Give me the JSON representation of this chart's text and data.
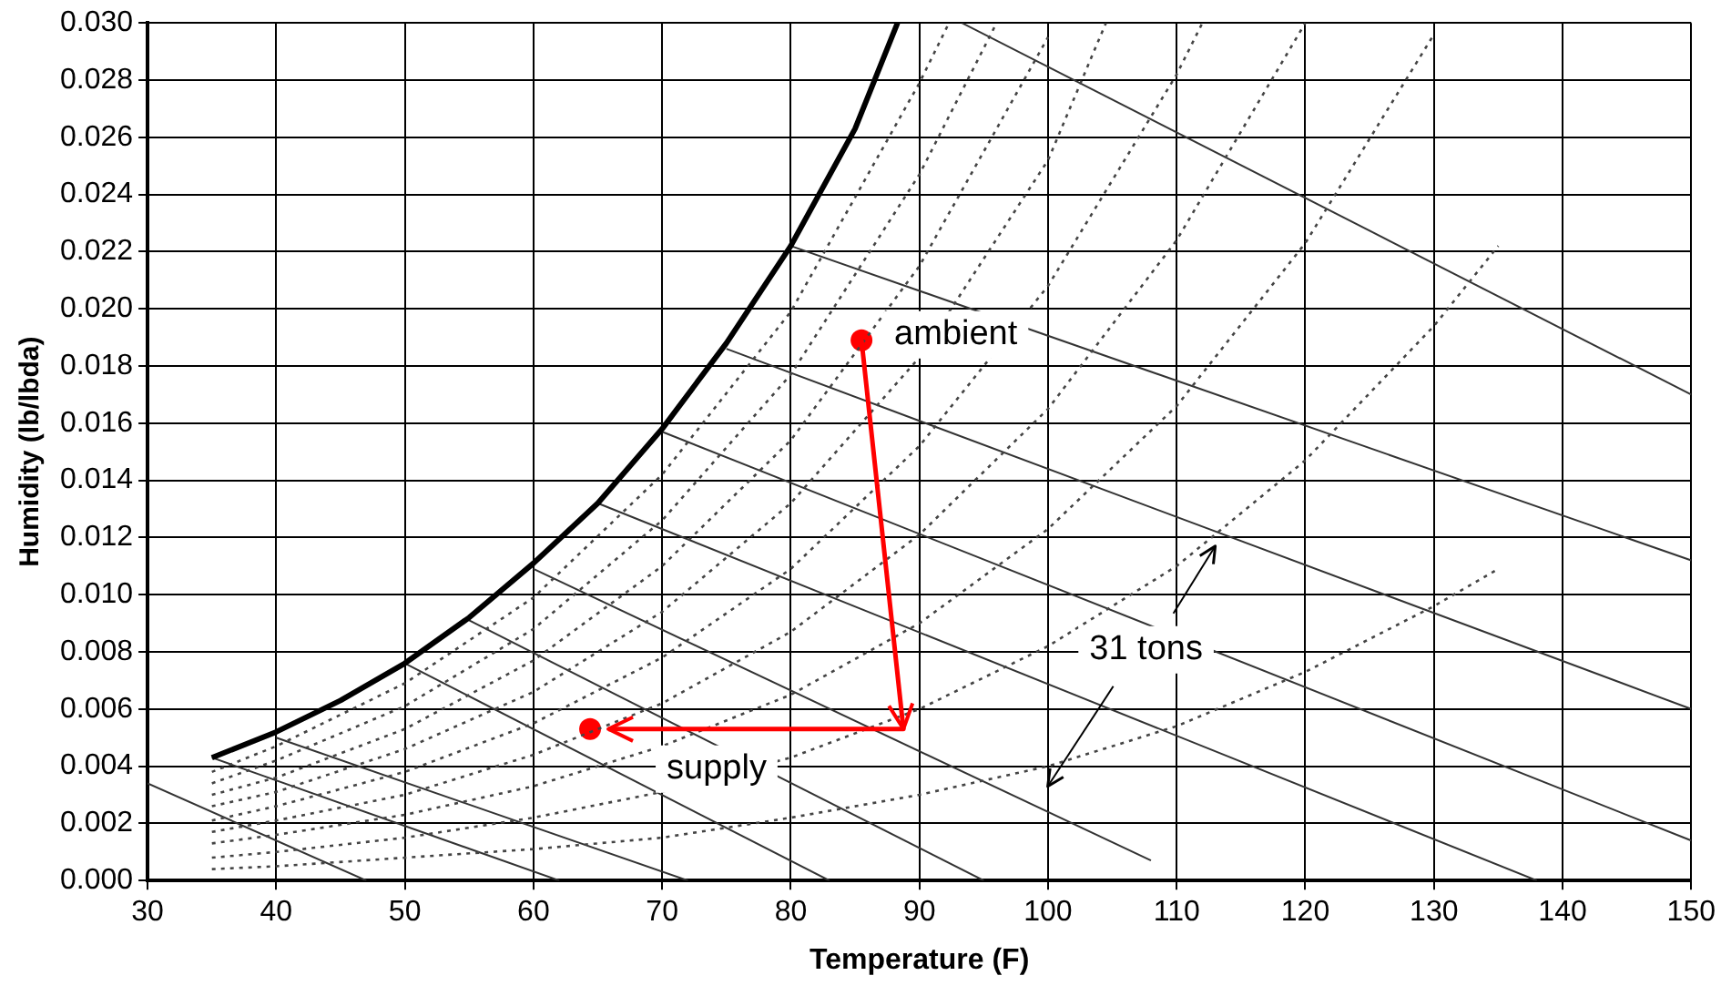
{
  "chart_data": {
    "type": "line",
    "xlabel": "Temperature (F)",
    "ylabel": "Humidity (lb/lbda)",
    "xlim": [
      30,
      150
    ],
    "xticks": [
      30,
      40,
      50,
      60,
      70,
      80,
      90,
      100,
      110,
      120,
      130,
      140,
      150
    ],
    "ylim": [
      0,
      0.03
    ],
    "yticks": [
      {
        "value": 0,
        "label": "0.000"
      },
      {
        "value": 0.002,
        "label": "0.002"
      },
      {
        "value": 0.004,
        "label": "0.004"
      },
      {
        "value": 0.006,
        "label": "0.006"
      },
      {
        "value": 0.008,
        "label": "0.008"
      },
      {
        "value": 0.01,
        "label": "0.010"
      },
      {
        "value": 0.012,
        "label": "0.012"
      },
      {
        "value": 0.014,
        "label": "0.014"
      },
      {
        "value": 0.016,
        "label": "0.016"
      },
      {
        "value": 0.018,
        "label": "0.018"
      },
      {
        "value": 0.02,
        "label": "0.020"
      },
      {
        "value": 0.022,
        "label": "0.022"
      },
      {
        "value": 0.024,
        "label": "0.024"
      },
      {
        "value": 0.026,
        "label": "0.026"
      },
      {
        "value": 0.028,
        "label": "0.028"
      },
      {
        "value": 0.03,
        "label": "0.030"
      }
    ],
    "grid": true,
    "legend": false,
    "series": [
      {
        "color": "#000000",
        "line_style": "solid",
        "marker": "none",
        "x": [
          35,
          40,
          45,
          50,
          55,
          60,
          65,
          70,
          75,
          80,
          85,
          88.3
        ],
        "values": [
          0.0043,
          0.0052,
          0.0063,
          0.0076,
          0.0092,
          0.0111,
          0.0132,
          0.0158,
          0.0188,
          0.0222,
          0.0263,
          0.03
        ]
      },
      {
        "color": "#444444",
        "line_style": "dotted",
        "marker": "none",
        "x": [
          35,
          40,
          50,
          60,
          70,
          80,
          90,
          92.3
        ],
        "values": [
          0.0038,
          0.0047,
          0.0069,
          0.0099,
          0.0142,
          0.0199,
          0.0279,
          0.03
        ]
      },
      {
        "color": "#444444",
        "line_style": "dotted",
        "marker": "none",
        "x": [
          35,
          40,
          50,
          60,
          70,
          80,
          90,
          96
        ],
        "values": [
          0.0034,
          0.0042,
          0.0061,
          0.0088,
          0.0126,
          0.0177,
          0.0247,
          0.03
        ]
      },
      {
        "color": "#444444",
        "line_style": "dotted",
        "marker": "none",
        "x": [
          35,
          40,
          50,
          60,
          70,
          80,
          90,
          100
        ],
        "values": [
          0.003,
          0.0036,
          0.0053,
          0.0077,
          0.011,
          0.0154,
          0.0215,
          0.0295
        ]
      },
      {
        "color": "#444444",
        "line_style": "dotted",
        "marker": "none",
        "x": [
          35,
          40,
          50,
          60,
          70,
          80,
          90,
          100,
          104.5
        ],
        "values": [
          0.0026,
          0.0031,
          0.0046,
          0.0066,
          0.0094,
          0.0132,
          0.0183,
          0.0252,
          0.03
        ]
      },
      {
        "color": "#444444",
        "line_style": "dotted",
        "marker": "none",
        "x": [
          35,
          40,
          50,
          60,
          70,
          80,
          90,
          100,
          110,
          112
        ],
        "values": [
          0.0021,
          0.0026,
          0.0038,
          0.0055,
          0.0078,
          0.0109,
          0.0152,
          0.0208,
          0.0282,
          0.03
        ]
      },
      {
        "color": "#444444",
        "line_style": "dotted",
        "marker": "none",
        "x": [
          35,
          40,
          50,
          60,
          70,
          80,
          90,
          100,
          110,
          120
        ],
        "values": [
          0.0017,
          0.0021,
          0.003,
          0.0044,
          0.0062,
          0.0087,
          0.0121,
          0.0165,
          0.0224,
          0.03
        ]
      },
      {
        "color": "#444444",
        "line_style": "dotted",
        "marker": "none",
        "x": [
          35,
          40,
          50,
          60,
          70,
          80,
          90,
          100,
          110,
          120,
          130
        ],
        "values": [
          0.0013,
          0.0016,
          0.0023,
          0.0033,
          0.0047,
          0.0065,
          0.009,
          0.0123,
          0.0166,
          0.0223,
          0.0296
        ]
      },
      {
        "color": "#444444",
        "line_style": "dotted",
        "marker": "none",
        "x": [
          35,
          40,
          50,
          60,
          70,
          80,
          90,
          100,
          110,
          120,
          130,
          135
        ],
        "values": [
          0.0008,
          0.001,
          0.0015,
          0.0022,
          0.0031,
          0.0043,
          0.006,
          0.0082,
          0.011,
          0.0147,
          0.0194,
          0.0222
        ]
      },
      {
        "color": "#444444",
        "line_style": "dotted",
        "marker": "none",
        "x": [
          35,
          40,
          50,
          60,
          70,
          80,
          90,
          100,
          110,
          120,
          130,
          135
        ],
        "values": [
          0.0004,
          0.0005,
          0.0008,
          0.0011,
          0.0015,
          0.0022,
          0.003,
          0.004,
          0.0054,
          0.0073,
          0.0096,
          0.0109
        ]
      },
      {
        "color": "#333333",
        "line_style": "solid",
        "marker": "none",
        "x": [
          30,
          47
        ],
        "values": [
          0.0034,
          0
        ]
      },
      {
        "color": "#333333",
        "line_style": "solid",
        "marker": "none",
        "x": [
          35,
          62
        ],
        "values": [
          0.0043,
          0
        ]
      },
      {
        "color": "#333333",
        "line_style": "solid",
        "marker": "none",
        "x": [
          40,
          72
        ],
        "values": [
          0.005,
          0
        ]
      },
      {
        "color": "#333333",
        "line_style": "solid",
        "marker": "none",
        "x": [
          50,
          83
        ],
        "values": [
          0.0076,
          0
        ]
      },
      {
        "color": "#333333",
        "line_style": "solid",
        "marker": "none",
        "x": [
          55,
          95
        ],
        "values": [
          0.0091,
          0
        ]
      },
      {
        "color": "#333333",
        "line_style": "solid",
        "marker": "none",
        "x": [
          60,
          108
        ],
        "values": [
          0.0109,
          0.0007
        ]
      },
      {
        "color": "#333333",
        "line_style": "solid",
        "marker": "none",
        "x": [
          65,
          138
        ],
        "values": [
          0.0132,
          0
        ]
      },
      {
        "color": "#333333",
        "line_style": "solid",
        "marker": "none",
        "x": [
          70,
          150
        ],
        "values": [
          0.0157,
          0.0014
        ]
      },
      {
        "color": "#333333",
        "line_style": "solid",
        "marker": "none",
        "x": [
          75,
          150
        ],
        "values": [
          0.0186,
          0.006
        ]
      },
      {
        "color": "#333333",
        "line_style": "solid",
        "marker": "none",
        "x": [
          80,
          150
        ],
        "values": [
          0.0222,
          0.0112
        ]
      },
      {
        "color": "#333333",
        "line_style": "solid",
        "marker": "none",
        "x": [
          93.3,
          150
        ],
        "values": [
          0.03,
          0.017
        ]
      },
      {
        "type": "scatter",
        "color": "#ff0000",
        "marker": "circle",
        "x": [
          85.5,
          64.4
        ],
        "values": [
          0.0189,
          0.0053
        ]
      }
    ],
    "annotations": [
      {
        "text": "ambient",
        "x": 85.5,
        "y": 0.0189
      },
      {
        "text": "supply",
        "x": 64.4,
        "y": 0.0053
      },
      {
        "text": "31 tons",
        "x": 113,
        "y": 0.0117
      }
    ]
  }
}
